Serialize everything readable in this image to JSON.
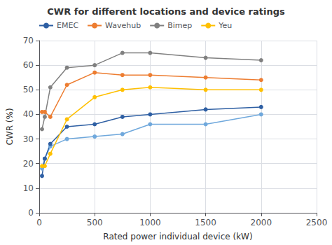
{
  "chart_data": {
    "type": "line",
    "title": "CWR for different locations and device ratings",
    "xlabel": "Rated power individual device (kW)",
    "ylabel": "CWR (%)",
    "x": [
      25,
      50,
      100,
      250,
      500,
      750,
      1000,
      1500,
      2000
    ],
    "series": [
      {
        "color": "#6FA8DC",
        "marker": "circle",
        "values": [
          18,
          22,
          27,
          30,
          31,
          32,
          36,
          36,
          40
        ]
      },
      {
        "name": "EMEC",
        "color": "#2E5FA3",
        "marker": "circle",
        "values": [
          15,
          22,
          28,
          35,
          36,
          39,
          40,
          42,
          43
        ]
      },
      {
        "name": "Wavehub",
        "color": "#ED7D31",
        "marker": "circle",
        "values": [
          41,
          41,
          39,
          52,
          57,
          56,
          56,
          55,
          54
        ]
      },
      {
        "name": "Bimep",
        "color": "#808080",
        "marker": "circle",
        "values": [
          34,
          39,
          51,
          59,
          60,
          65,
          65,
          63,
          62
        ]
      },
      {
        "name": "Yeu",
        "color": "#FFC000",
        "marker": "circle",
        "values": [
          19,
          19,
          24,
          38,
          47,
          50,
          51,
          50,
          50
        ]
      }
    ],
    "xlim": [
      0,
      2500
    ],
    "ylim": [
      0,
      70
    ],
    "xticks": [
      0,
      500,
      1000,
      1500,
      2000,
      2500
    ],
    "yticks": [
      0,
      10,
      20,
      30,
      40,
      50,
      60,
      70
    ],
    "grid": true,
    "legend": "upper left"
  }
}
